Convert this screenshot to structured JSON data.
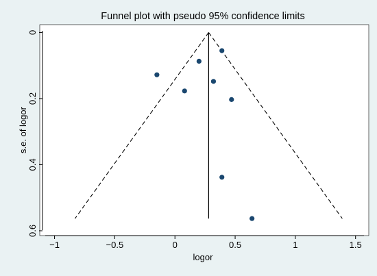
{
  "chart_data": {
    "type": "scatter",
    "title": "Funnel plot with pseudo 95% confidence limits",
    "xlabel": "logor",
    "ylabel": "s.e. of logor",
    "xlim": [
      -1.1,
      1.57
    ],
    "ylim": [
      -0.005,
      0.598
    ],
    "y_reversed": true,
    "x_ticks": [
      {
        "value": -1,
        "label": "−1"
      },
      {
        "value": -0.5,
        "label": "−0.5"
      },
      {
        "value": 0,
        "label": "0"
      },
      {
        "value": 0.5,
        "label": "0.5"
      },
      {
        "value": 1,
        "label": "1"
      },
      {
        "value": 1.5,
        "label": "1.5"
      }
    ],
    "y_ticks": [
      {
        "value": 0,
        "label": "0"
      },
      {
        "value": 0.2,
        "label": "0.2"
      },
      {
        "value": 0.4,
        "label": "0.4"
      },
      {
        "value": 0.6,
        "label": "0.6"
      }
    ],
    "grid": false,
    "points": [
      {
        "x": 0.39,
        "y": 0.055
      },
      {
        "x": 0.2,
        "y": 0.087
      },
      {
        "x": -0.15,
        "y": 0.128
      },
      {
        "x": 0.32,
        "y": 0.148
      },
      {
        "x": 0.08,
        "y": 0.177
      },
      {
        "x": 0.47,
        "y": 0.203
      },
      {
        "x": 0.39,
        "y": 0.438
      },
      {
        "x": 0.64,
        "y": 0.563
      }
    ],
    "pooled_estimate": {
      "x": 0.28,
      "y_from": 0,
      "y_to": 0.563
    },
    "confidence_limits": {
      "lower": [
        {
          "x": 0.28,
          "y": 0
        },
        {
          "x": -0.83,
          "y": 0.563
        }
      ],
      "upper": [
        {
          "x": 0.28,
          "y": 0
        },
        {
          "x": 1.39,
          "y": 0.563
        }
      ]
    },
    "colors": {
      "background": "#eaf2f3",
      "plot_area": "#ffffff",
      "points": "#1a476f",
      "lines": "#000000"
    }
  }
}
